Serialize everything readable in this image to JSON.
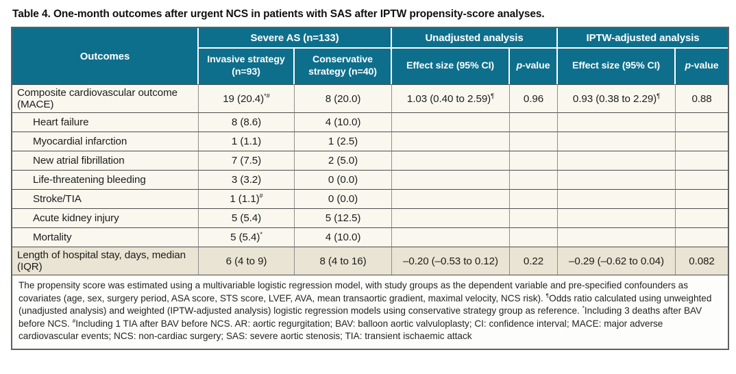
{
  "title": "Table 4. One-month outcomes after urgent NCS in patients with SAS after IPTW propensity-score analyses.",
  "colors": {
    "header_teal": "#0e6f8c",
    "row_cream": "#faf7ef",
    "summary_row_beige": "#e9e4d3",
    "border_dark": "#4c4c4c",
    "border_outer": "#5f6062",
    "header_text": "#ffffff"
  },
  "table": {
    "header": {
      "outcomes": "Outcomes",
      "severe_as": "Severe AS (n=133)",
      "unadjusted": "Unadjusted analysis",
      "iptw": "IPTW-adjusted analysis"
    },
    "subheaders": [
      {
        "name": "subheader-invasive",
        "label": "Invasive strategy (n=93)"
      },
      {
        "name": "subheader-conservative",
        "label": "Conservative strategy (n=40)"
      },
      {
        "name": "subheader-unadjusted-effect",
        "label": "Effect size (95% CI)"
      },
      {
        "name": "subheader-unadjusted-pvalue",
        "italic": "p",
        "label": "-value"
      },
      {
        "name": "subheader-iptw-effect",
        "label": "Effect size (95% CI)"
      },
      {
        "name": "subheader-iptw-pvalue",
        "italic": "p",
        "label": "-value"
      }
    ],
    "rows": [
      {
        "outcome": "Composite cardiovascular outcome (MACE)",
        "indent": false,
        "shaded": false,
        "cells": [
          {
            "t": "19 (20.4)",
            "sup": "*#"
          },
          {
            "t": "8 (20.0)"
          },
          {
            "t": "1.03 (0.40 to 2.59)",
            "sup": "¶"
          },
          {
            "t": "0.96"
          },
          {
            "t": "0.93 (0.38 to 2.29)",
            "sup": "¶"
          },
          {
            "t": "0.88"
          }
        ]
      },
      {
        "outcome": "Heart failure",
        "indent": true,
        "shaded": false,
        "cells": [
          {
            "t": "8 (8.6)"
          },
          {
            "t": "4 (10.0)"
          },
          {},
          {},
          {},
          {}
        ]
      },
      {
        "outcome": "Myocardial infarction",
        "indent": true,
        "shaded": false,
        "cells": [
          {
            "t": "1 (1.1)"
          },
          {
            "t": "1 (2.5)"
          },
          {},
          {},
          {},
          {}
        ]
      },
      {
        "outcome": "New atrial fibrillation",
        "indent": true,
        "shaded": false,
        "cells": [
          {
            "t": "7 (7.5)"
          },
          {
            "t": "2 (5.0)"
          },
          {},
          {},
          {},
          {}
        ]
      },
      {
        "outcome": "Life-threatening bleeding",
        "indent": true,
        "shaded": false,
        "cells": [
          {
            "t": "3 (3.2)"
          },
          {
            "t": "0 (0.0)"
          },
          {},
          {},
          {},
          {}
        ]
      },
      {
        "outcome": "Stroke/TIA",
        "indent": true,
        "shaded": false,
        "cells": [
          {
            "t": "1 (1.1)",
            "sup": "#"
          },
          {
            "t": "0 (0.0)"
          },
          {},
          {},
          {},
          {}
        ]
      },
      {
        "outcome": "Acute kidney injury",
        "indent": true,
        "shaded": false,
        "cells": [
          {
            "t": "5 (5.4)"
          },
          {
            "t": "5 (12.5)"
          },
          {},
          {},
          {},
          {}
        ]
      },
      {
        "outcome": "Mortality",
        "indent": true,
        "shaded": false,
        "cells": [
          {
            "t": "5 (5.4)",
            "sup": "*"
          },
          {
            "t": "4 (10.0)"
          },
          {},
          {},
          {},
          {}
        ]
      },
      {
        "outcome": "Length of hospital stay, days, median (IQR)",
        "indent": false,
        "shaded": true,
        "cells": [
          {
            "t": "6 (4 to 9)"
          },
          {
            "t": "8 (4 to 16)"
          },
          {
            "t": "–0.20 (–0.53 to 0.12)"
          },
          {
            "t": "0.22"
          },
          {
            "t": "–0.29 (–0.62 to 0.04)"
          },
          {
            "t": "0.082"
          }
        ]
      }
    ]
  },
  "footnote": {
    "segments": [
      {
        "text": "The propensity score was estimated using a multivariable logistic regression model, with study groups as the dependent variable and pre-specified confounders as covariates (age, sex, surgery period, ASA score, STS score, LVEF, AVA, mean transaortic gradient, maximal velocity, NCS risk). "
      },
      {
        "sup": "¶"
      },
      {
        "text": "Odds ratio calculated using unweighted (unadjusted analysis) and weighted (IPTW-adjusted analysis) logistic regression models using conservative strategy group as reference. "
      },
      {
        "sup": "*"
      },
      {
        "text": "Including 3 deaths after BAV before NCS. "
      },
      {
        "sup": "#"
      },
      {
        "text": "Including 1 TIA after BAV before NCS. AR: aortic regurgitation; BAV: balloon aortic valvuloplasty; CI: confidence interval; MACE: major adverse cardiovascular events; NCS: non-cardiac surgery; SAS: severe aortic stenosis; TIA: transient ischaemic attack"
      }
    ]
  }
}
